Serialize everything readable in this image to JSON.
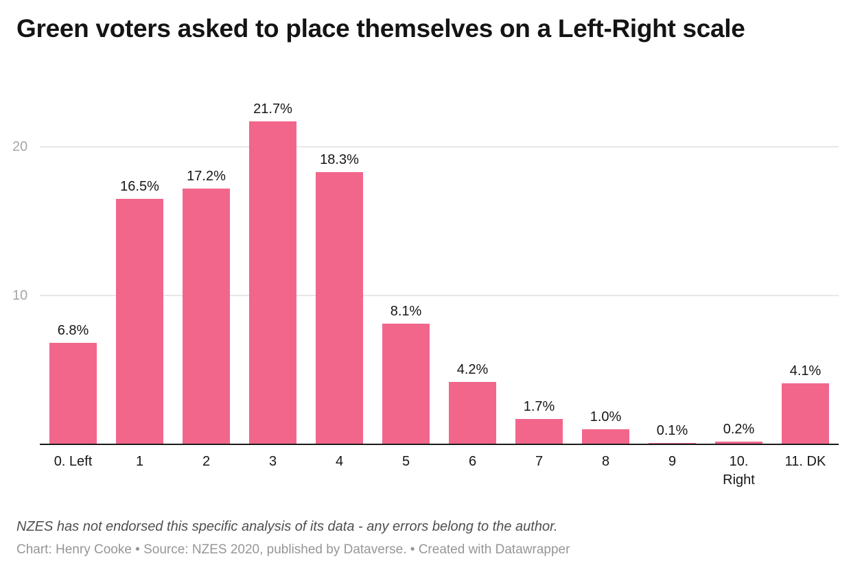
{
  "title": "Green voters asked to place themselves on a Left-Right scale",
  "chart_data": {
    "type": "bar",
    "title": "Green voters asked to place themselves on a Left-Right scale",
    "categories": [
      "0. Left",
      "1",
      "2",
      "3",
      "4",
      "5",
      "6",
      "7",
      "8",
      "9",
      "10.\nRight",
      "11. DK"
    ],
    "values": [
      6.8,
      16.5,
      17.2,
      21.7,
      18.3,
      8.1,
      4.2,
      1.7,
      1.0,
      0.1,
      0.2,
      4.1
    ],
    "value_labels": [
      "6.8%",
      "16.5%",
      "17.2%",
      "21.7%",
      "18.3%",
      "8.1%",
      "4.2%",
      "1.7%",
      "1.0%",
      "0.1%",
      "0.2%",
      "4.1%"
    ],
    "xlabel": "",
    "ylabel": "",
    "ylim": [
      0,
      20
    ],
    "yticks": [
      10,
      20
    ],
    "ytick_labels": [
      "10",
      "20"
    ],
    "grid": true,
    "legend": "none",
    "bar_color": "#f2668c"
  },
  "footer": {
    "note": "NZES has not endorsed this specific analysis of its data - any errors belong to the author.",
    "credit": "Chart: Henry Cooke • Source: NZES 2020, published by Dataverse. • Created with Datawrapper"
  }
}
